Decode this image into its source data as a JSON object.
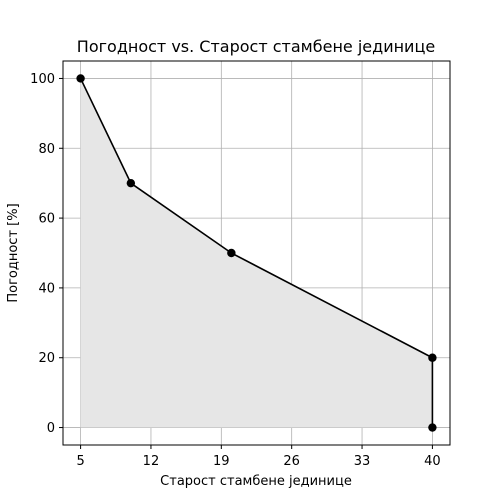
{
  "chart_data": {
    "type": "area",
    "title": "Погодност vs. Старост стамбене јединице",
    "xlabel": "Старост стамбене јединице",
    "ylabel": "Погодност [%]",
    "x": [
      5,
      10,
      20,
      40,
      40
    ],
    "y": [
      100,
      70,
      50,
      20,
      0
    ],
    "xticks": [
      5,
      12,
      19,
      26,
      33,
      40
    ],
    "yticks": [
      0,
      20,
      40,
      60,
      80,
      100
    ],
    "xlim": [
      3.25,
      41.75
    ],
    "ylim": [
      -5,
      105
    ],
    "grid": true,
    "colors": {
      "line": "#000000",
      "fill": "#e6e6e6",
      "grid": "#b0b0b0",
      "frame": "#000000"
    }
  }
}
